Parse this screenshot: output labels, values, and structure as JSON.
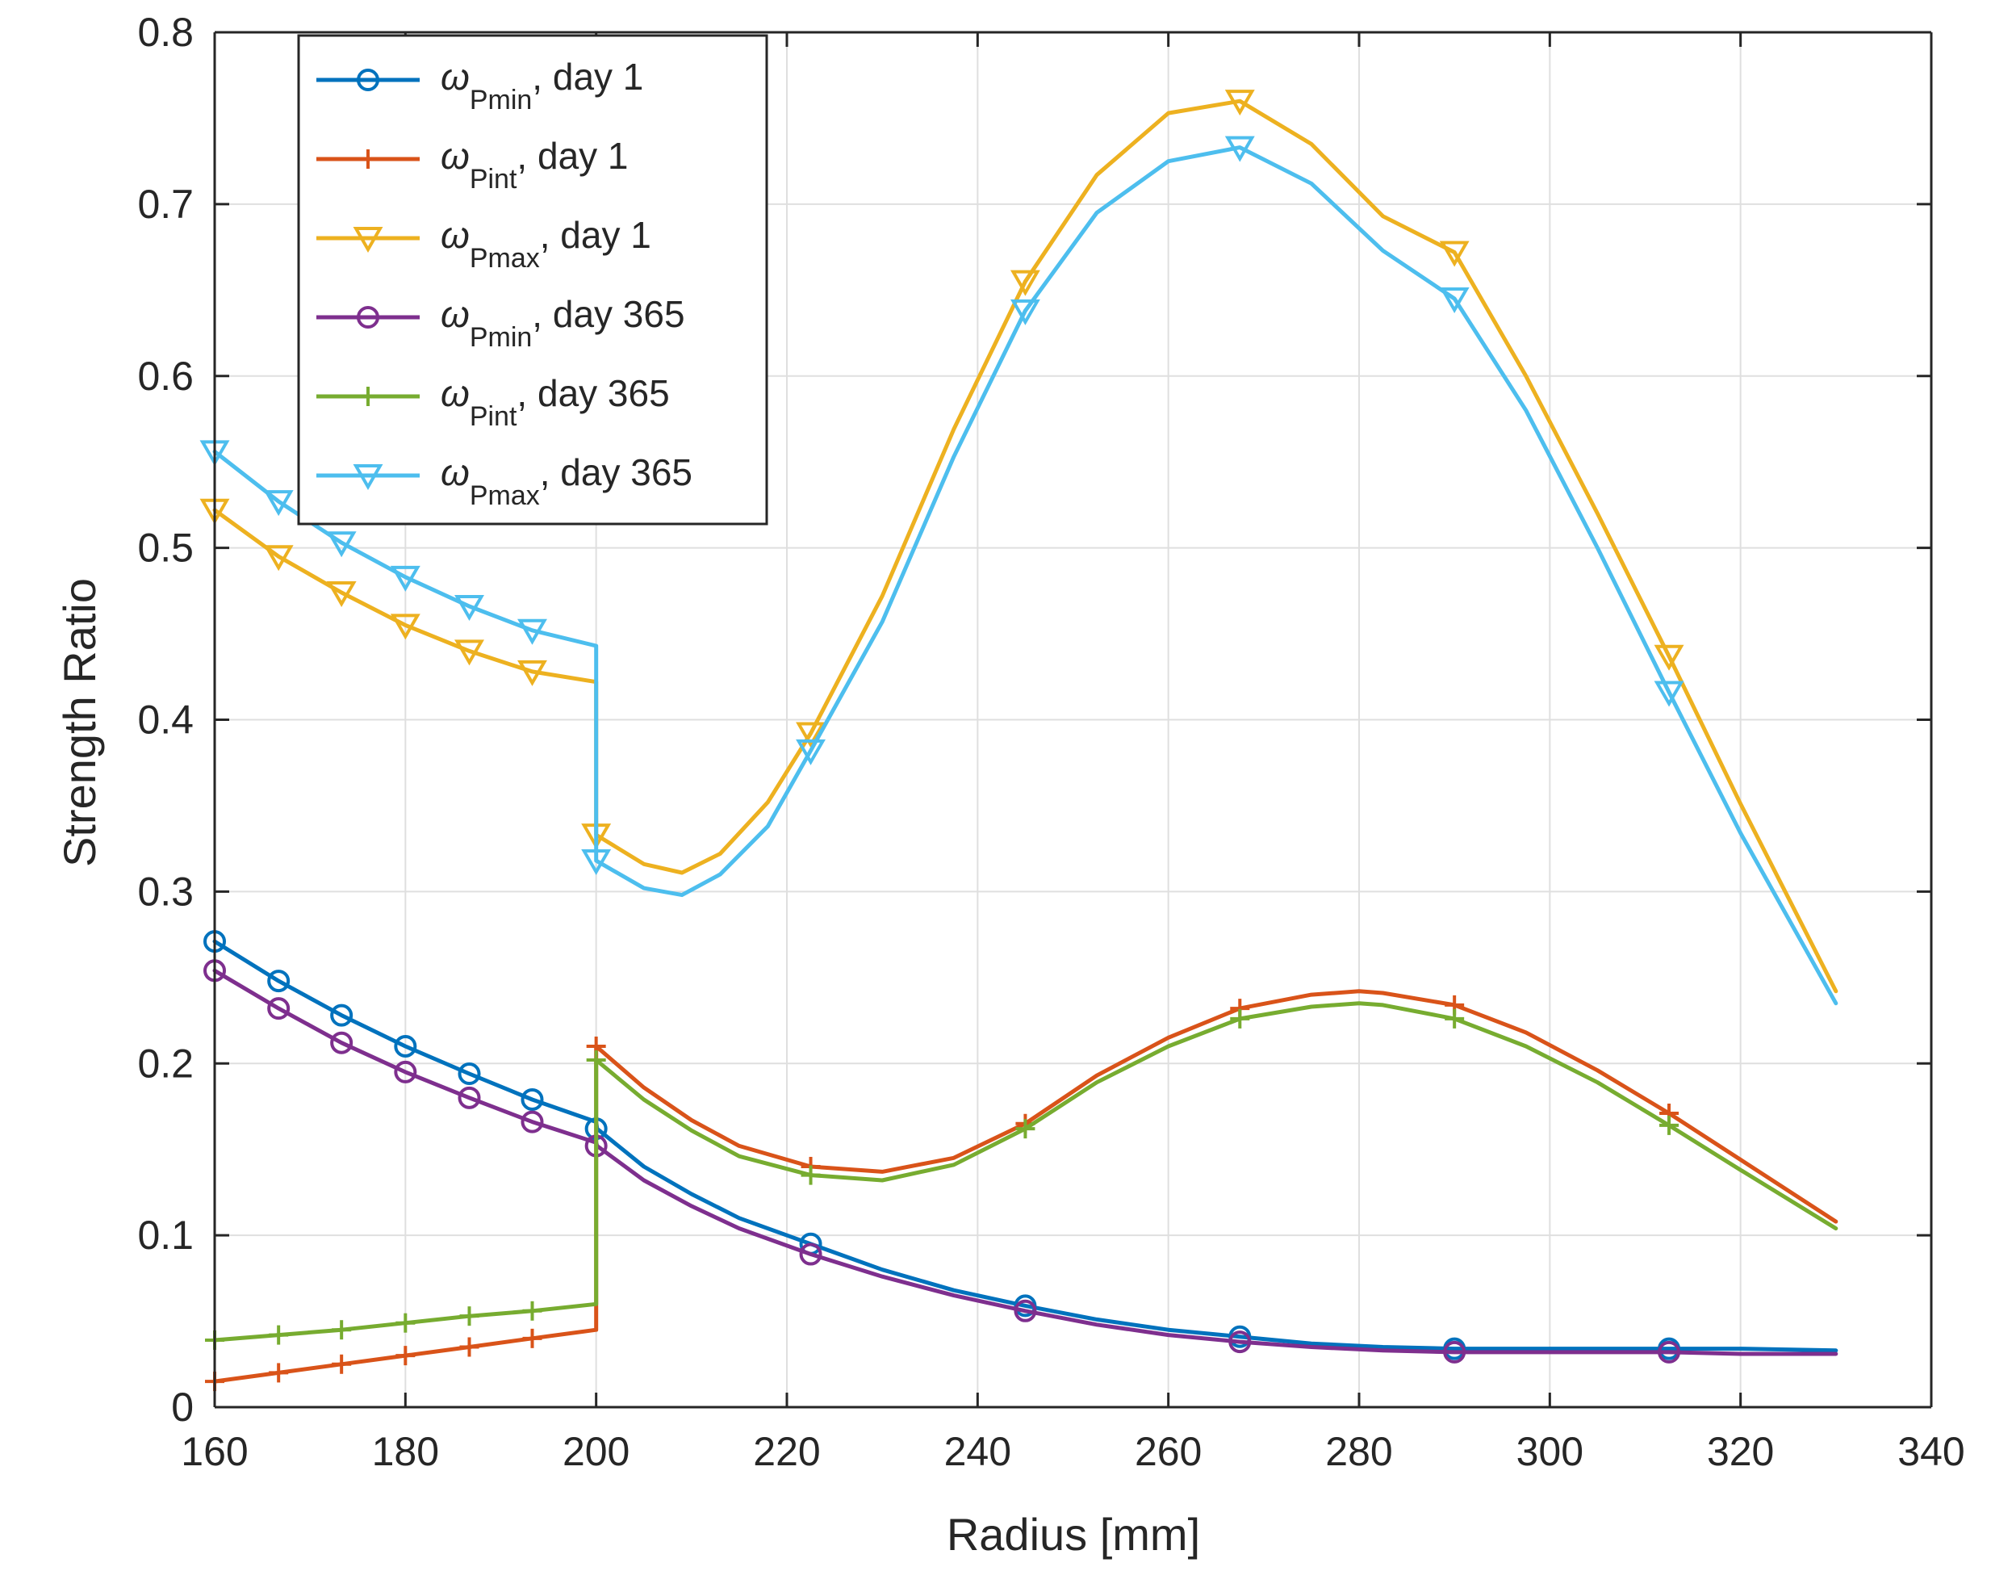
{
  "chart_data": {
    "type": "line",
    "title": "",
    "xlabel": "Radius [mm]",
    "ylabel": "Strength Ratio",
    "xlim": [
      160,
      340
    ],
    "ylim": [
      0,
      0.8
    ],
    "xticks": [
      160,
      180,
      200,
      220,
      240,
      260,
      280,
      300,
      320,
      340
    ],
    "xtick_labels": [
      "160",
      "180",
      "200",
      "220",
      "240",
      "260",
      "280",
      "300",
      "320",
      "340"
    ],
    "yticks": [
      0,
      0.1,
      0.2,
      0.3,
      0.4,
      0.5,
      0.6,
      0.7,
      0.8
    ],
    "ytick_labels": [
      "0",
      "0.1",
      "0.2",
      "0.3",
      "0.4",
      "0.5",
      "0.6",
      "0.7",
      "0.8"
    ],
    "grid": true,
    "legend_position": "top-left",
    "series": [
      {
        "name": "ωPmin, day 1",
        "legend_symbol": "ω",
        "legend_subscript": "Pmin",
        "legend_suffix": ", day 1",
        "color": "#0072BD",
        "marker": "circle",
        "x": [
          160,
          166.7,
          173.3,
          180,
          186.7,
          193.3,
          200,
          200.1,
          205,
          210,
          215,
          222.5,
          230,
          237.5,
          245,
          252.5,
          260,
          267.5,
          275,
          282.5,
          290,
          297.5,
          305,
          312.5,
          320,
          330
        ],
        "y": [
          0.271,
          0.248,
          0.228,
          0.21,
          0.194,
          0.179,
          0.166,
          0.162,
          0.14,
          0.124,
          0.11,
          0.095,
          0.08,
          0.068,
          0.059,
          0.051,
          0.045,
          0.041,
          0.037,
          0.035,
          0.034,
          0.034,
          0.034,
          0.034,
          0.034,
          0.033
        ],
        "marker_x": [
          160,
          166.7,
          173.3,
          180,
          186.7,
          193.3,
          200,
          222.5,
          245,
          267.5,
          290,
          312.5
        ],
        "marker_y": [
          0.271,
          0.248,
          0.228,
          0.21,
          0.194,
          0.179,
          0.162,
          0.095,
          0.059,
          0.041,
          0.034,
          0.034
        ]
      },
      {
        "name": "ωPint, day 1",
        "legend_symbol": "ω",
        "legend_subscript": "Pint",
        "legend_suffix": ", day 1",
        "color": "#D95319",
        "marker": "plus",
        "x": [
          160,
          166.7,
          173.3,
          180,
          186.7,
          193.3,
          200,
          200,
          205,
          210,
          215,
          222.5,
          230,
          237.5,
          245,
          252.5,
          260,
          267.5,
          275,
          280,
          282.5,
          290,
          297.5,
          305,
          312.5,
          320,
          330
        ],
        "y": [
          0.015,
          0.02,
          0.025,
          0.03,
          0.035,
          0.04,
          0.045,
          0.21,
          0.186,
          0.167,
          0.152,
          0.14,
          0.137,
          0.145,
          0.165,
          0.193,
          0.215,
          0.232,
          0.24,
          0.242,
          0.241,
          0.234,
          0.218,
          0.196,
          0.171,
          0.144,
          0.108
        ],
        "marker_x": [
          160,
          166.7,
          173.3,
          180,
          186.7,
          193.3,
          200,
          222.5,
          245,
          267.5,
          290,
          312.5
        ],
        "marker_y": [
          0.015,
          0.02,
          0.025,
          0.03,
          0.035,
          0.04,
          0.21,
          0.14,
          0.165,
          0.232,
          0.234,
          0.171
        ]
      },
      {
        "name": "ωPmax, day 1",
        "legend_symbol": "ω",
        "legend_subscript": "Pmax",
        "legend_suffix": ", day 1",
        "color": "#EDB120",
        "marker": "triangle-down",
        "x": [
          160,
          166.7,
          173.3,
          180,
          186.7,
          193.3,
          200,
          200,
          205,
          209,
          213,
          218,
          222.5,
          230,
          237.5,
          245,
          252.5,
          260,
          267.5,
          275,
          282.5,
          290,
          297.5,
          305,
          312.5,
          320,
          330
        ],
        "y": [
          0.522,
          0.495,
          0.474,
          0.455,
          0.44,
          0.428,
          0.422,
          0.333,
          0.316,
          0.311,
          0.322,
          0.352,
          0.392,
          0.472,
          0.569,
          0.655,
          0.717,
          0.753,
          0.76,
          0.735,
          0.693,
          0.672,
          0.6,
          0.52,
          0.437,
          0.351,
          0.242
        ],
        "marker_x": [
          160,
          166.7,
          173.3,
          180,
          186.7,
          193.3,
          200,
          222.5,
          245,
          267.5,
          290,
          312.5
        ],
        "marker_y": [
          0.522,
          0.495,
          0.474,
          0.455,
          0.44,
          0.428,
          0.333,
          0.392,
          0.655,
          0.76,
          0.672,
          0.437
        ]
      },
      {
        "name": "ωPmin, day 365",
        "legend_symbol": "ω",
        "legend_subscript": "Pmin",
        "legend_suffix": ", day 365",
        "color": "#7E2F8E",
        "marker": "circle",
        "x": [
          160,
          166.7,
          173.3,
          180,
          186.7,
          193.3,
          200,
          200.1,
          205,
          210,
          215,
          222.5,
          230,
          237.5,
          245,
          252.5,
          260,
          267.5,
          275,
          282.5,
          290,
          297.5,
          305,
          312.5,
          320,
          330
        ],
        "y": [
          0.254,
          0.232,
          0.212,
          0.195,
          0.18,
          0.166,
          0.154,
          0.152,
          0.132,
          0.117,
          0.104,
          0.089,
          0.076,
          0.065,
          0.056,
          0.048,
          0.042,
          0.038,
          0.035,
          0.033,
          0.032,
          0.032,
          0.032,
          0.032,
          0.031,
          0.031
        ],
        "marker_x": [
          160,
          166.7,
          173.3,
          180,
          186.7,
          193.3,
          200,
          222.5,
          245,
          267.5,
          290,
          312.5
        ],
        "marker_y": [
          0.254,
          0.232,
          0.212,
          0.195,
          0.18,
          0.166,
          0.152,
          0.089,
          0.056,
          0.038,
          0.032,
          0.032
        ]
      },
      {
        "name": "ωPint, day 365",
        "legend_symbol": "ω",
        "legend_subscript": "Pint",
        "legend_suffix": ", day 365",
        "color": "#77AC30",
        "marker": "plus",
        "x": [
          160,
          166.7,
          173.3,
          180,
          186.7,
          193.3,
          200,
          200,
          205,
          210,
          215,
          222.5,
          230,
          237.5,
          245,
          252.5,
          260,
          267.5,
          275,
          280,
          282.5,
          290,
          297.5,
          305,
          312.5,
          320,
          330
        ],
        "y": [
          0.039,
          0.042,
          0.045,
          0.049,
          0.053,
          0.056,
          0.06,
          0.202,
          0.179,
          0.161,
          0.146,
          0.135,
          0.132,
          0.141,
          0.162,
          0.189,
          0.21,
          0.226,
          0.233,
          0.235,
          0.234,
          0.226,
          0.21,
          0.189,
          0.164,
          0.138,
          0.104
        ],
        "marker_x": [
          160,
          166.7,
          173.3,
          180,
          186.7,
          193.3,
          200,
          222.5,
          245,
          267.5,
          290,
          312.5
        ],
        "marker_y": [
          0.039,
          0.042,
          0.045,
          0.049,
          0.053,
          0.056,
          0.202,
          0.135,
          0.162,
          0.226,
          0.226,
          0.164
        ]
      },
      {
        "name": "ωPmax, day 365",
        "legend_symbol": "ω",
        "legend_subscript": "Pmax",
        "legend_suffix": ", day 365",
        "color": "#4DBEEE",
        "marker": "triangle-down",
        "x": [
          160,
          166.7,
          173.3,
          180,
          186.7,
          193.3,
          200,
          200,
          205,
          209,
          213,
          218,
          222.5,
          230,
          237.5,
          245,
          252.5,
          260,
          267.5,
          275,
          282.5,
          290,
          297.5,
          305,
          312.5,
          320,
          330
        ],
        "y": [
          0.556,
          0.527,
          0.503,
          0.483,
          0.466,
          0.452,
          0.443,
          0.318,
          0.302,
          0.298,
          0.31,
          0.338,
          0.382,
          0.457,
          0.553,
          0.638,
          0.695,
          0.725,
          0.733,
          0.712,
          0.673,
          0.645,
          0.58,
          0.5,
          0.416,
          0.334,
          0.235
        ],
        "marker_x": [
          160,
          166.7,
          173.3,
          180,
          186.7,
          193.3,
          200,
          222.5,
          245,
          267.5,
          290,
          312.5
        ],
        "marker_y": [
          0.556,
          0.527,
          0.503,
          0.483,
          0.466,
          0.452,
          0.318,
          0.382,
          0.638,
          0.733,
          0.645,
          0.416
        ]
      }
    ]
  }
}
